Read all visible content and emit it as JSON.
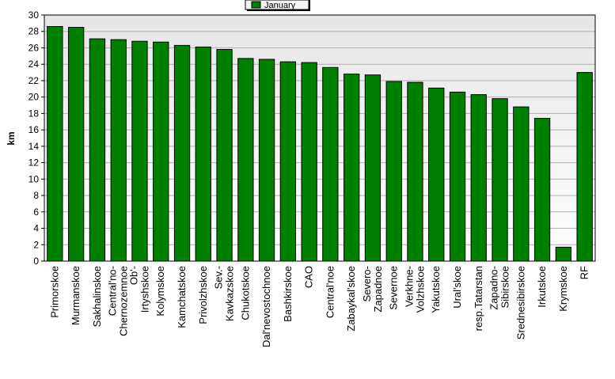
{
  "chart_data": {
    "type": "bar",
    "categories": [
      "Primorskoe",
      "Murmanskoe",
      "Sakhalinskoe",
      "Central'no-\nChernozemnoe",
      "Ob'-\nIrtyshskoe",
      "Kolymskoe",
      "Kamchatskoe",
      "Privolzhskoe",
      "Sev.-\nKavkazskoe",
      "Chukotskoe",
      "Dal'nevostochnoe",
      "Bashkirskoe",
      "CAO",
      "Central'noe",
      "Zabaykal'skoe",
      "Severo-\nZapadnoe",
      "Severnoe",
      "Verkhne-\nVolzhskoe",
      "Yakutskoe",
      "Ural'skoe",
      "resp.Tatarstan",
      "Zapadno-\nSibirskoe",
      "Srednesibirskoe",
      "Irkutskoe",
      "Krymskoe",
      "RF"
    ],
    "series": [
      {
        "name": "January",
        "color": "#008000",
        "values": [
          28.6,
          28.5,
          27.1,
          27.0,
          26.8,
          26.7,
          26.3,
          26.1,
          25.8,
          24.7,
          24.6,
          24.3,
          24.2,
          23.6,
          22.8,
          22.7,
          21.9,
          21.8,
          21.1,
          20.6,
          20.3,
          19.8,
          18.8,
          17.4,
          1.7,
          23.0
        ]
      }
    ],
    "xlabel": "",
    "ylabel": "km",
    "ylim": [
      0,
      30
    ],
    "yticks": [
      0,
      2,
      4,
      6,
      8,
      10,
      12,
      14,
      16,
      18,
      20,
      22,
      24,
      26,
      28,
      30
    ],
    "grid": true,
    "legend": "top-center"
  }
}
